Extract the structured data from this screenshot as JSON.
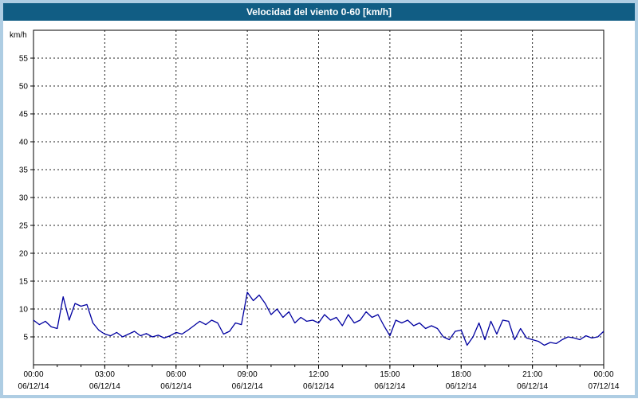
{
  "window": {
    "title": "Velocidad del viento 0-60 [km/h]"
  },
  "colors": {
    "frame": "#aecde3",
    "titlebar": "#115d84",
    "title_text": "#ffffff",
    "plot_background": "#ffffff",
    "grid": "#222222",
    "axis": "#000000",
    "line": "#0000a0"
  },
  "chart_data": {
    "type": "line",
    "title": "Velocidad del viento 0-60 [km/h]",
    "xlabel": "",
    "ylabel": "km/h",
    "ylim": [
      0,
      60
    ],
    "xlim": [
      0,
      24
    ],
    "grid": true,
    "legend_position": "none",
    "y_ticks": [
      5,
      10,
      15,
      20,
      25,
      30,
      35,
      40,
      45,
      50,
      55
    ],
    "x_grid_hours": [
      3,
      6,
      9,
      12,
      15,
      18,
      21
    ],
    "x_ticks": [
      {
        "hour": 0,
        "time": "00:00",
        "date": "06/12/14"
      },
      {
        "hour": 3,
        "time": "03:00",
        "date": "06/12/14"
      },
      {
        "hour": 6,
        "time": "06:00",
        "date": "06/12/14"
      },
      {
        "hour": 9,
        "time": "09:00",
        "date": "06/12/14"
      },
      {
        "hour": 12,
        "time": "12:00",
        "date": "06/12/14"
      },
      {
        "hour": 15,
        "time": "15:00",
        "date": "06/12/14"
      },
      {
        "hour": 18,
        "time": "18:00",
        "date": "06/12/14"
      },
      {
        "hour": 21,
        "time": "21:00",
        "date": "06/12/14"
      },
      {
        "hour": 24,
        "time": "00:00",
        "date": "07/12/14"
      }
    ],
    "series": [
      {
        "name": "Velocidad del viento",
        "color": "#0000a0",
        "x_start_hour": 0,
        "x_step_minutes": 15,
        "values": [
          8.0,
          7.2,
          7.8,
          6.8,
          6.5,
          12.2,
          8.0,
          11.0,
          10.5,
          10.8,
          7.5,
          6.2,
          5.5,
          5.2,
          5.8,
          5.0,
          5.5,
          6.0,
          5.2,
          5.6,
          5.0,
          5.3,
          4.8,
          5.2,
          5.8,
          5.5,
          6.2,
          7.0,
          7.8,
          7.2,
          8.0,
          7.5,
          5.5,
          6.0,
          7.5,
          7.2,
          13.0,
          11.5,
          12.5,
          11.0,
          9.0,
          10.0,
          8.5,
          9.5,
          7.5,
          8.5,
          7.8,
          8.0,
          7.5,
          9.0,
          8.0,
          8.5,
          7.0,
          9.0,
          7.5,
          8.0,
          9.5,
          8.5,
          9.0,
          7.0,
          5.2,
          8.0,
          7.5,
          8.0,
          7.0,
          7.5,
          6.5,
          7.0,
          6.5,
          5.0,
          4.5,
          6.0,
          6.2,
          3.5,
          5.0,
          7.5,
          4.5,
          7.8,
          5.5,
          8.0,
          7.8,
          4.5,
          6.5,
          4.8,
          4.5,
          4.2,
          3.5,
          4.0,
          3.8,
          4.5,
          5.0,
          4.8,
          4.5,
          5.2,
          4.8,
          5.0,
          6.0
        ]
      }
    ]
  }
}
